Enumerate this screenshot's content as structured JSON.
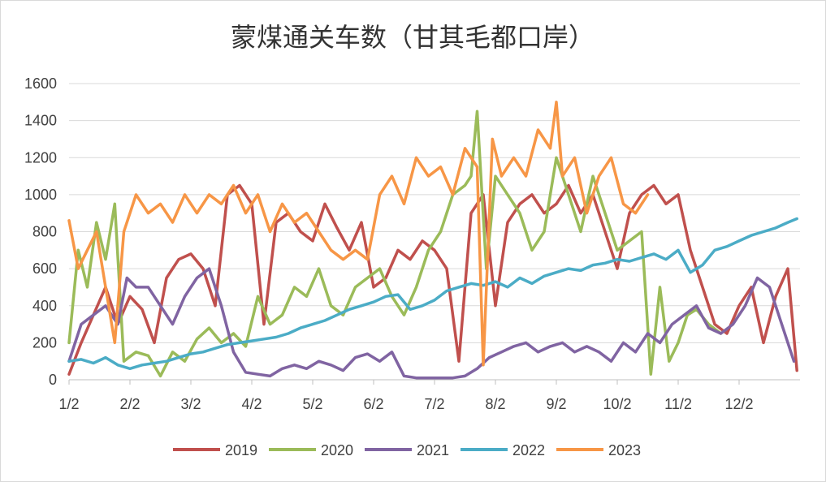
{
  "chart_data": {
    "type": "line",
    "title": "蒙煤通关车数（甘其毛都口岸）",
    "xlabel": "",
    "ylabel": "",
    "x_tick_labels": [
      "1/2",
      "2/2",
      "3/2",
      "4/2",
      "5/2",
      "6/2",
      "7/2",
      "8/2",
      "9/2",
      "10/2",
      "11/2",
      "12/2"
    ],
    "y_ticks": [
      0,
      200,
      400,
      600,
      800,
      1000,
      1200,
      1400,
      1600
    ],
    "ylim": [
      0,
      1600
    ],
    "grid": "horizontal",
    "legend_position": "bottom",
    "x_unit": "month (1 = Jan 2)",
    "series": [
      {
        "name": "2019",
        "color": "#c0504d",
        "x": [
          1.0,
          1.2,
          1.4,
          1.6,
          1.8,
          2.0,
          2.2,
          2.4,
          2.6,
          2.8,
          3.0,
          3.2,
          3.4,
          3.6,
          3.8,
          4.0,
          4.2,
          4.4,
          4.6,
          4.8,
          5.0,
          5.2,
          5.4,
          5.6,
          5.8,
          6.0,
          6.2,
          6.4,
          6.6,
          6.8,
          7.0,
          7.2,
          7.4,
          7.6,
          7.8,
          8.0,
          8.2,
          8.4,
          8.6,
          8.8,
          9.0,
          9.2,
          9.4,
          9.6,
          9.8,
          10.0,
          10.2,
          10.4,
          10.6,
          10.8,
          11.0,
          11.2,
          11.4,
          11.6,
          11.8,
          12.0,
          12.2,
          12.4,
          12.6,
          12.8,
          12.95
        ],
        "values": [
          30,
          200,
          350,
          500,
          300,
          450,
          380,
          200,
          550,
          650,
          680,
          600,
          400,
          1000,
          1050,
          950,
          300,
          850,
          900,
          800,
          750,
          950,
          820,
          700,
          850,
          500,
          550,
          700,
          650,
          750,
          700,
          600,
          100,
          900,
          1000,
          400,
          850,
          950,
          1000,
          900,
          950,
          1050,
          900,
          1000,
          800,
          600,
          900,
          1000,
          1050,
          950,
          1000,
          700,
          500,
          300,
          250,
          400,
          500,
          200,
          450,
          600,
          50
        ]
      },
      {
        "name": "2020",
        "color": "#9bbb59",
        "x": [
          1.0,
          1.15,
          1.3,
          1.45,
          1.6,
          1.75,
          1.9,
          2.1,
          2.3,
          2.5,
          2.7,
          2.9,
          3.1,
          3.3,
          3.5,
          3.7,
          3.9,
          4.1,
          4.3,
          4.5,
          4.7,
          4.9,
          5.1,
          5.3,
          5.5,
          5.7,
          5.9,
          6.1,
          6.3,
          6.5,
          6.7,
          6.9,
          7.1,
          7.3,
          7.5,
          7.6,
          7.7,
          7.85,
          8.0,
          8.2,
          8.4,
          8.6,
          8.8,
          9.0,
          9.2,
          9.4,
          9.6,
          9.8,
          10.0,
          10.2,
          10.4,
          10.55,
          10.7,
          10.85,
          11.0,
          11.15,
          11.3,
          11.5,
          11.7
        ],
        "values": [
          200,
          700,
          500,
          850,
          650,
          950,
          100,
          150,
          130,
          20,
          150,
          100,
          220,
          280,
          200,
          250,
          180,
          450,
          300,
          350,
          500,
          450,
          600,
          400,
          350,
          500,
          550,
          600,
          450,
          350,
          500,
          700,
          800,
          1000,
          1050,
          1100,
          1450,
          600,
          1100,
          1000,
          900,
          700,
          800,
          1200,
          1000,
          800,
          1100,
          900,
          700,
          750,
          800,
          30,
          500,
          100,
          200,
          350,
          380,
          300,
          250
        ]
      },
      {
        "name": "2021",
        "color": "#8064a2",
        "x": [
          1.0,
          1.2,
          1.4,
          1.6,
          1.8,
          1.95,
          2.1,
          2.3,
          2.5,
          2.7,
          2.9,
          3.1,
          3.3,
          3.5,
          3.7,
          3.9,
          4.1,
          4.3,
          4.5,
          4.7,
          4.9,
          5.1,
          5.3,
          5.5,
          5.7,
          5.9,
          6.1,
          6.3,
          6.5,
          6.7,
          6.9,
          7.1,
          7.3,
          7.5,
          7.7,
          7.9,
          8.1,
          8.3,
          8.5,
          8.7,
          8.9,
          9.1,
          9.3,
          9.5,
          9.7,
          9.9,
          10.1,
          10.3,
          10.5,
          10.7,
          10.9,
          11.1,
          11.3,
          11.5,
          11.7,
          11.9,
          12.1,
          12.3,
          12.5,
          12.7,
          12.9
        ],
        "values": [
          100,
          300,
          350,
          400,
          300,
          550,
          500,
          500,
          400,
          300,
          450,
          550,
          600,
          400,
          150,
          40,
          30,
          20,
          60,
          80,
          60,
          100,
          80,
          50,
          120,
          140,
          100,
          150,
          20,
          10,
          10,
          10,
          10,
          20,
          60,
          120,
          150,
          180,
          200,
          150,
          180,
          200,
          150,
          180,
          150,
          100,
          200,
          150,
          250,
          200,
          300,
          350,
          400,
          280,
          250,
          300,
          400,
          550,
          500,
          300,
          100
        ]
      },
      {
        "name": "2022",
        "color": "#4bacc6",
        "x": [
          1.0,
          1.2,
          1.4,
          1.6,
          1.8,
          2.0,
          2.2,
          2.4,
          2.6,
          2.8,
          3.0,
          3.2,
          3.4,
          3.6,
          3.8,
          4.0,
          4.2,
          4.4,
          4.6,
          4.8,
          5.0,
          5.2,
          5.4,
          5.6,
          5.8,
          6.0,
          6.2,
          6.4,
          6.6,
          6.8,
          7.0,
          7.2,
          7.4,
          7.6,
          7.8,
          8.0,
          8.2,
          8.4,
          8.6,
          8.8,
          9.0,
          9.2,
          9.4,
          9.6,
          9.8,
          10.0,
          10.2,
          10.4,
          10.6,
          10.8,
          11.0,
          11.2,
          11.4,
          11.6,
          11.8,
          12.0,
          12.2,
          12.4,
          12.6,
          12.8,
          12.95
        ],
        "values": [
          100,
          110,
          90,
          120,
          80,
          60,
          80,
          90,
          100,
          120,
          140,
          150,
          170,
          190,
          200,
          210,
          220,
          230,
          250,
          280,
          300,
          320,
          350,
          380,
          400,
          420,
          450,
          460,
          380,
          400,
          430,
          480,
          500,
          520,
          510,
          530,
          500,
          550,
          520,
          560,
          580,
          600,
          590,
          620,
          630,
          650,
          640,
          660,
          680,
          650,
          700,
          580,
          620,
          700,
          720,
          750,
          780,
          800,
          820,
          850,
          870
        ]
      },
      {
        "name": "2023",
        "color": "#f79646",
        "x": [
          1.0,
          1.15,
          1.3,
          1.45,
          1.6,
          1.75,
          1.9,
          2.1,
          2.3,
          2.5,
          2.7,
          2.9,
          3.1,
          3.3,
          3.5,
          3.7,
          3.9,
          4.1,
          4.3,
          4.5,
          4.7,
          4.9,
          5.1,
          5.3,
          5.5,
          5.7,
          5.9,
          6.1,
          6.3,
          6.5,
          6.7,
          6.9,
          7.1,
          7.3,
          7.5,
          7.7,
          7.8,
          7.95,
          8.1,
          8.3,
          8.5,
          8.7,
          8.9,
          9.0,
          9.1,
          9.3,
          9.5,
          9.7,
          9.9,
          10.1,
          10.3,
          10.5
        ],
        "values": [
          860,
          600,
          700,
          800,
          500,
          200,
          800,
          1000,
          900,
          950,
          850,
          1000,
          900,
          1000,
          950,
          1050,
          900,
          1000,
          800,
          950,
          850,
          900,
          800,
          700,
          650,
          700,
          650,
          1000,
          1100,
          950,
          1200,
          1100,
          1150,
          1000,
          1250,
          1150,
          80,
          1300,
          1100,
          1200,
          1100,
          1350,
          1250,
          1500,
          1100,
          1200,
          900,
          1100,
          1200,
          950,
          900,
          1000
        ]
      }
    ]
  }
}
